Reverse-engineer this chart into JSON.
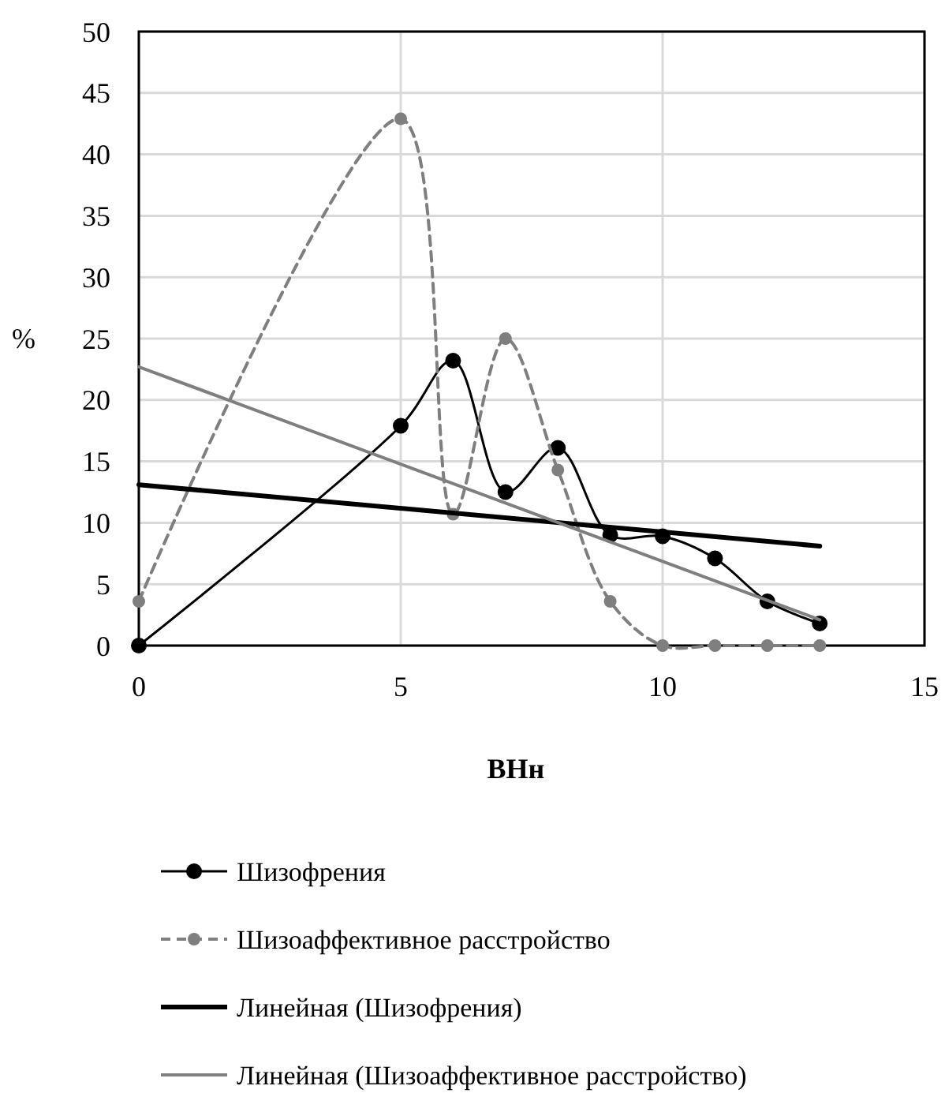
{
  "chart_data": {
    "type": "line",
    "xlabel": "ВНн",
    "ylabel": "%",
    "xlim": [
      0,
      15
    ],
    "xticks": [
      0,
      5,
      10,
      15
    ],
    "ylim": [
      0,
      50
    ],
    "yticks": [
      0,
      5,
      10,
      15,
      20,
      25,
      30,
      35,
      40,
      45,
      50
    ],
    "grid": true,
    "legend": "bottom",
    "series": [
      {
        "name": "Шизофрения",
        "color": "#000000",
        "marker": "circle",
        "line_style": "solid",
        "x": [
          0,
          5,
          6,
          7,
          8,
          9,
          10,
          11,
          12,
          13
        ],
        "values": [
          0,
          17.9,
          23.2,
          12.5,
          16.1,
          9.0,
          8.9,
          7.1,
          3.6,
          1.8
        ]
      },
      {
        "name": "Шизоаффективное расстройство",
        "color": "#7f7f7f",
        "marker": "circle",
        "line_style": "dashed",
        "x": [
          0,
          5,
          6,
          7,
          8,
          9,
          10,
          11,
          12,
          13
        ],
        "values": [
          3.6,
          42.9,
          10.7,
          25.0,
          14.3,
          3.6,
          0,
          0,
          0,
          0
        ]
      },
      {
        "name": "Линейная (Шизофрения)",
        "color": "#000000",
        "marker": "none",
        "line_style": "solid",
        "x": [
          0,
          13
        ],
        "values": [
          13.1,
          8.1
        ]
      },
      {
        "name": "Линейная (Шизоаффективное расстройство)",
        "color": "#7f7f7f",
        "marker": "none",
        "line_style": "solid",
        "x": [
          0,
          13
        ],
        "values": [
          22.7,
          2.1
        ]
      }
    ]
  }
}
